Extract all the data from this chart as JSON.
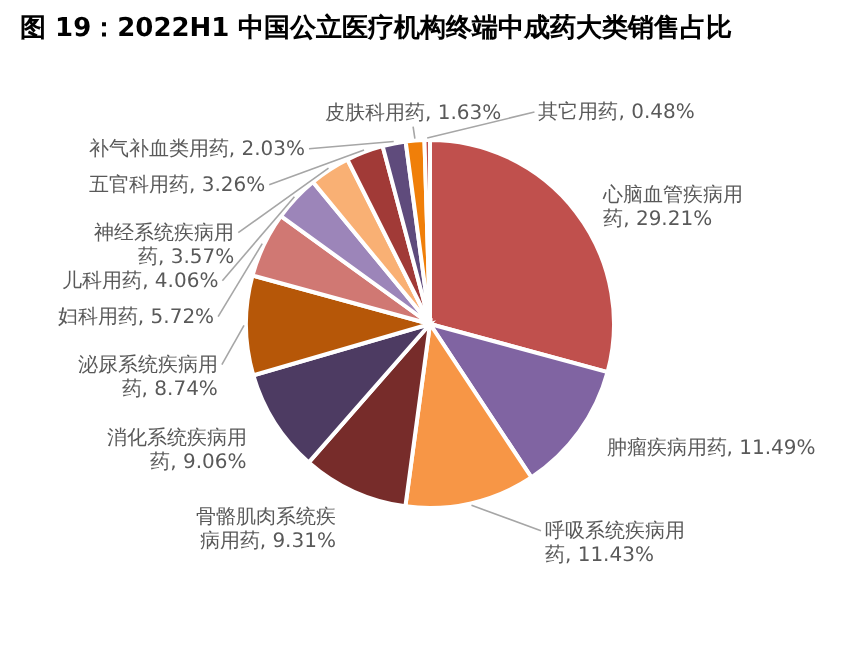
{
  "chart_data": {
    "type": "pie",
    "title": "图 19：2022H1 中国公立医疗机构终端中成药大类销售占比",
    "categories": [
      "心脑血管疾病用药",
      "肿瘤疾病用药",
      "呼吸系统疾病用药",
      "骨骼肌肉系统疾病用药",
      "消化系统疾病用药",
      "泌尿系统疾病用药",
      "妇科用药",
      "儿科用药",
      "神经系统疾病用药",
      "五官科用药",
      "补气补血类用药",
      "皮肤科用药",
      "其它用药"
    ],
    "values": [
      29.21,
      11.49,
      11.43,
      9.31,
      9.06,
      8.74,
      5.72,
      4.06,
      3.57,
      3.26,
      2.03,
      1.63,
      0.48
    ],
    "value_labels": [
      "29.21%",
      "11.49%",
      "11.43%",
      "9.31%",
      "9.06%",
      "8.74%",
      "5.72%",
      "4.06%",
      "3.57%",
      "3.26%",
      "2.03%",
      "1.63%",
      "0.48%"
    ],
    "colors": [
      "#c0504d",
      "#8064a2",
      "#f79646",
      "#772c2a",
      "#4d3b62",
      "#b65708",
      "#d07873",
      "#9c85b9",
      "#f9b074",
      "#a13a37",
      "#5f4b7c",
      "#f07f09",
      "#c0504d"
    ]
  }
}
